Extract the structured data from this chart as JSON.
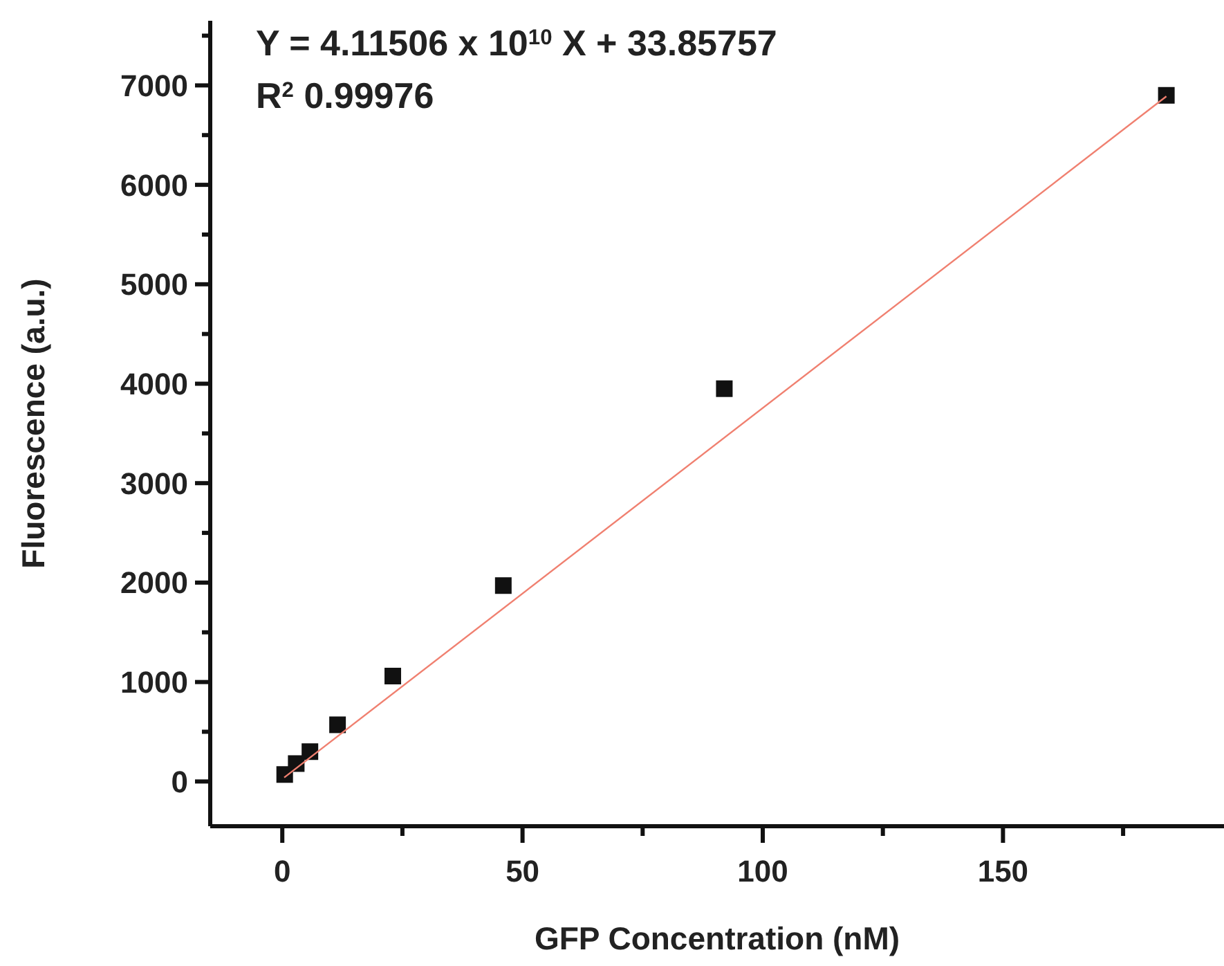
{
  "chart_data": {
    "type": "scatter",
    "xlabel": "GFP Concentration (nM)",
    "ylabel": "Fluorescence (a.u.)",
    "annotations": [
      "Y = 4.11506 x 10$^{10}$ X + 33.85757",
      "R$^{2}$ 0.99976"
    ],
    "xlim": [
      -15,
      196
    ],
    "ylim": [
      -450,
      7650
    ],
    "xticks": [
      0,
      {
        "value": 25,
        "label": null
      },
      50,
      {
        "value": 75,
        "label": null
      },
      100,
      {
        "value": 125,
        "label": null
      },
      150,
      {
        "value": 175,
        "label": null
      }
    ],
    "yticks": [
      0,
      {
        "value": 500,
        "label": null
      },
      1000,
      {
        "value": 1500,
        "label": null
      },
      2000,
      {
        "value": 2500,
        "label": null
      },
      3000,
      {
        "value": 3500,
        "label": null
      },
      4000,
      {
        "value": 4500,
        "label": null
      },
      5000,
      {
        "value": 5500,
        "label": null
      },
      6000,
      {
        "value": 6500,
        "label": null
      },
      7000,
      {
        "value": 7500,
        "label": null
      }
    ],
    "grid": false,
    "series": [
      {
        "marker": "square",
        "color": "#111111",
        "x": [
          0.5,
          2.9,
          5.75,
          11.5,
          23,
          46,
          92,
          184
        ],
        "values": [
          70,
          180,
          300,
          570,
          1060,
          1970,
          3950,
          6900
        ]
      },
      {
        "type": "line",
        "color": "#f08070",
        "x": [
          0.4,
          184
        ],
        "values": [
          40,
          6890
        ]
      }
    ]
  }
}
